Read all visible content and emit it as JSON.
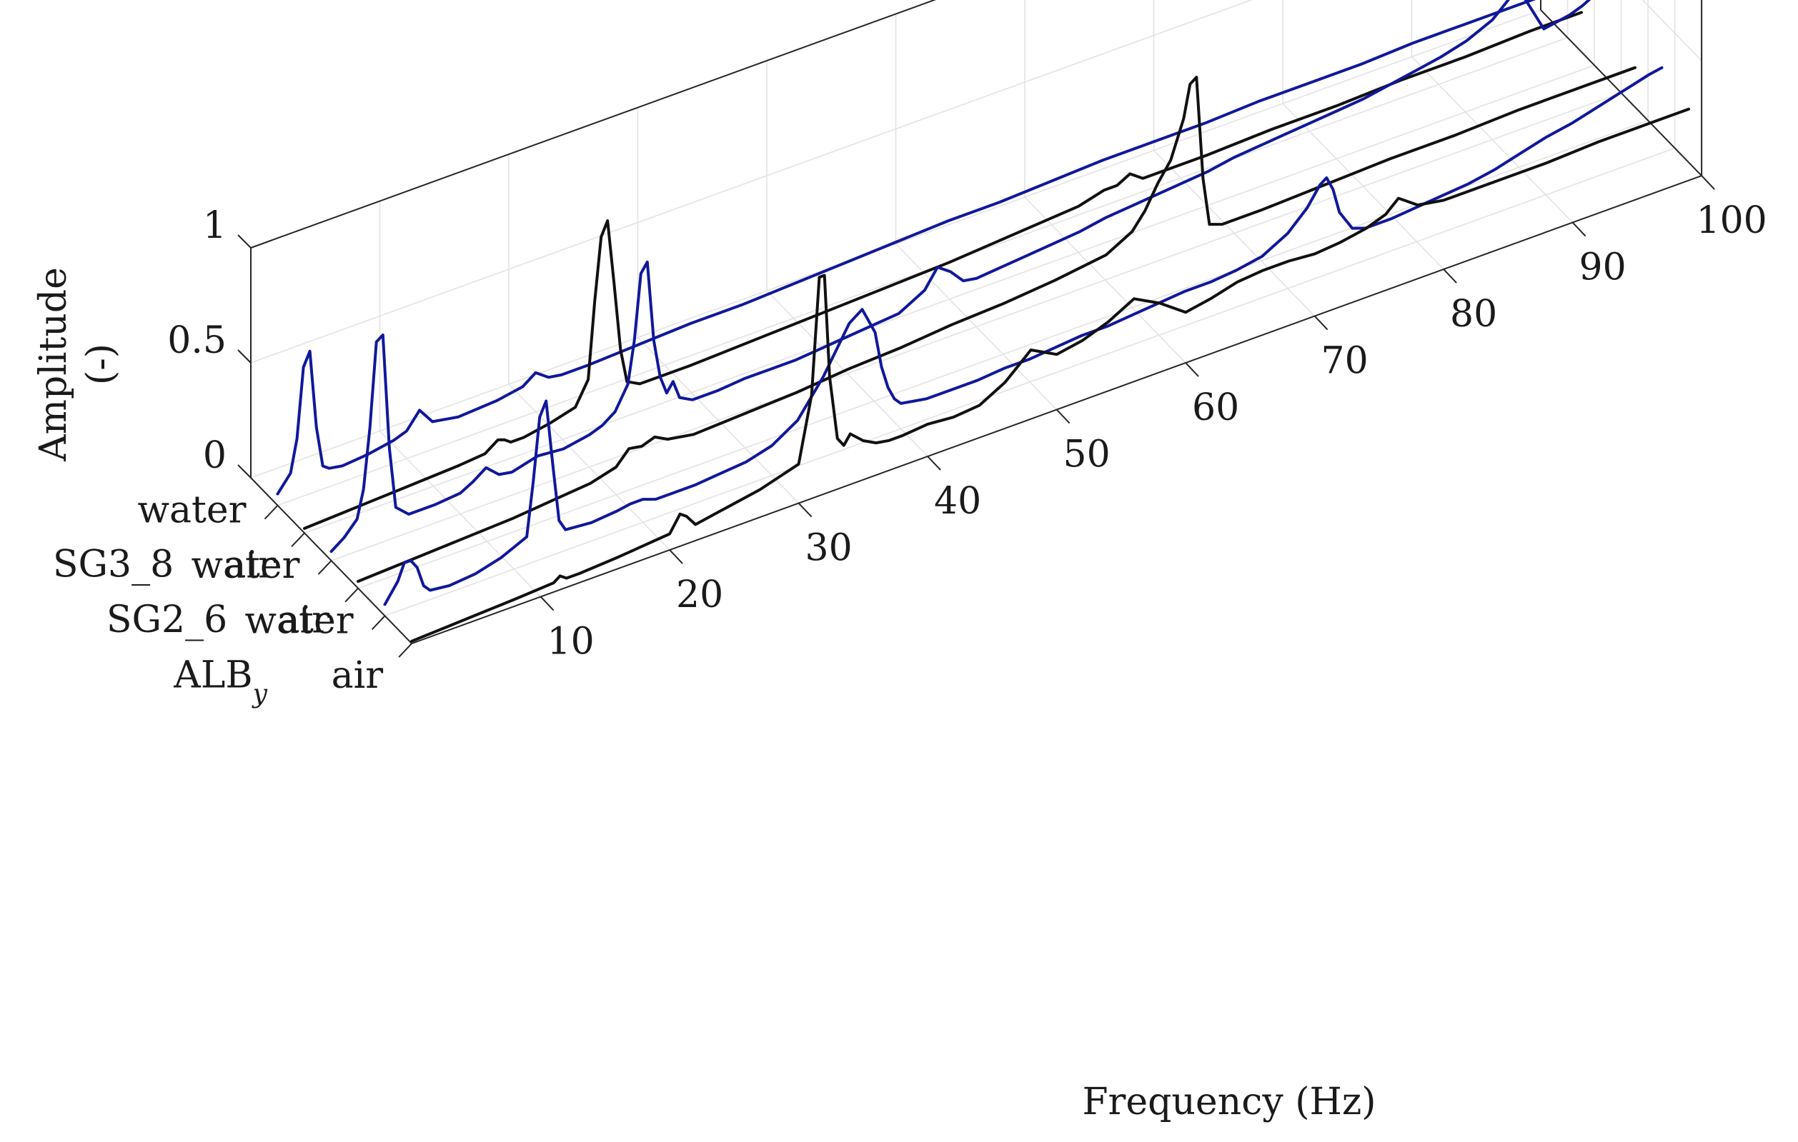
{
  "chart_data": {
    "type": "line",
    "view": "3d-waterfall",
    "title": "",
    "xlabel": "Frequency (Hz)",
    "ylabel": "",
    "zlabel_lines": [
      "Amplitude",
      "(-)"
    ],
    "xlim": [
      0,
      100
    ],
    "zlim": [
      0,
      1
    ],
    "x_ticks": [
      "10",
      "20",
      "30",
      "40",
      "50",
      "60",
      "70",
      "80",
      "90",
      "100"
    ],
    "z_ticks": [
      "0",
      "0.5",
      "1"
    ],
    "grid": true,
    "groups": [
      {
        "label": "ALB",
        "subscript": "y",
        "rows": [
          "water",
          "air"
        ]
      },
      {
        "label": "SG2_6",
        "rows": [
          "water",
          "air"
        ]
      },
      {
        "label": "SG3_8",
        "rows": [
          "water",
          "air"
        ]
      }
    ],
    "colors": {
      "water": "#10189a",
      "air": "#111111",
      "frame": "#262626",
      "grid": "#e3e3e3"
    },
    "series": [
      {
        "name": "ALB_y water",
        "group": "ALB",
        "medium": "water",
        "x": [
          0,
          1,
          1.5,
          2,
          2.5,
          3,
          3.5,
          5,
          7,
          9,
          11,
          11.5,
          12,
          12.5,
          13,
          13.5,
          14,
          16,
          18,
          19,
          20,
          21,
          22,
          24,
          26,
          28,
          30,
          32,
          34,
          36,
          37,
          38,
          38.5,
          39,
          39.5,
          40,
          41,
          42,
          44,
          46,
          48,
          50,
          52,
          54,
          56,
          58,
          60,
          62,
          64,
          66,
          68,
          70,
          71.5,
          72.5,
          73,
          73.5,
          74,
          75,
          76,
          78,
          80,
          82,
          84,
          86,
          88,
          90,
          92,
          94,
          96,
          98,
          99
        ],
        "values": [
          0.05,
          0.13,
          0.2,
          0.2,
          0.16,
          0.07,
          0.04,
          0.03,
          0.04,
          0.07,
          0.12,
          0.35,
          0.62,
          0.68,
          0.4,
          0.14,
          0.09,
          0.08,
          0.09,
          0.1,
          0.1,
          0.08,
          0.08,
          0.08,
          0.09,
          0.1,
          0.13,
          0.2,
          0.35,
          0.54,
          0.58,
          0.46,
          0.3,
          0.2,
          0.14,
          0.11,
          0.1,
          0.09,
          0.09,
          0.09,
          0.1,
          0.1,
          0.11,
          0.12,
          0.12,
          0.13,
          0.14,
          0.15,
          0.15,
          0.16,
          0.18,
          0.24,
          0.32,
          0.4,
          0.42,
          0.36,
          0.25,
          0.16,
          0.14,
          0.14,
          0.15,
          0.16,
          0.17,
          0.19,
          0.22,
          0.25,
          0.27,
          0.3,
          0.33,
          0.36,
          0.37
        ]
      },
      {
        "name": "ALB_y air",
        "group": "ALB",
        "medium": "air",
        "x": [
          0,
          4,
          8,
          11,
          11.5,
          12,
          13,
          16,
          20,
          20.8,
          21.3,
          22,
          24,
          27,
          30,
          31,
          31.6,
          32,
          32.4,
          33,
          33.5,
          34,
          35,
          36,
          37,
          38,
          40,
          42,
          44,
          45,
          46,
          47,
          48,
          49,
          50,
          52,
          54,
          56,
          58,
          60,
          62,
          64,
          66,
          68,
          70,
          72,
          74,
          75.5,
          76.5,
          77,
          78,
          80,
          84,
          88,
          92,
          96,
          99
        ],
        "values": [
          0.01,
          0.02,
          0.03,
          0.04,
          0.06,
          0.04,
          0.04,
          0.05,
          0.07,
          0.14,
          0.12,
          0.07,
          0.09,
          0.12,
          0.17,
          0.45,
          0.95,
          0.95,
          0.5,
          0.22,
          0.18,
          0.22,
          0.17,
          0.14,
          0.13,
          0.13,
          0.14,
          0.13,
          0.14,
          0.17,
          0.2,
          0.25,
          0.3,
          0.27,
          0.24,
          0.26,
          0.3,
          0.36,
          0.3,
          0.22,
          0.24,
          0.27,
          0.28,
          0.28,
          0.27,
          0.28,
          0.3,
          0.33,
          0.38,
          0.36,
          0.32,
          0.3,
          0.3,
          0.3,
          0.31,
          0.31,
          0.31
        ]
      },
      {
        "name": "SG2_6 water",
        "group": "SG2_6",
        "medium": "water",
        "x": [
          0,
          1,
          2,
          2.5,
          3,
          3.5,
          4,
          4.5,
          5,
          6,
          8,
          10,
          11,
          12,
          13,
          14,
          16,
          18,
          20,
          21,
          22,
          23,
          23.5,
          24,
          24.5,
          25,
          25.5,
          26,
          26.5,
          27,
          28,
          30,
          32,
          34,
          36,
          38,
          40,
          42,
          44,
          46,
          47,
          48,
          49,
          50,
          52,
          54,
          56,
          58,
          60,
          62,
          64,
          66,
          68,
          70,
          72,
          74,
          76,
          78,
          80,
          82,
          84,
          86,
          88,
          90,
          92,
          94,
          96,
          97,
          98
        ],
        "values": [
          0.04,
          0.08,
          0.14,
          0.26,
          0.52,
          0.88,
          0.9,
          0.4,
          0.13,
          0.08,
          0.08,
          0.09,
          0.12,
          0.16,
          0.11,
          0.1,
          0.13,
          0.12,
          0.14,
          0.16,
          0.2,
          0.3,
          0.48,
          0.76,
          0.8,
          0.45,
          0.28,
          0.2,
          0.24,
          0.16,
          0.13,
          0.13,
          0.14,
          0.14,
          0.14,
          0.15,
          0.16,
          0.17,
          0.18,
          0.24,
          0.32,
          0.28,
          0.22,
          0.21,
          0.22,
          0.23,
          0.24,
          0.25,
          0.27,
          0.28,
          0.29,
          0.3,
          0.31,
          0.33,
          0.34,
          0.35,
          0.36,
          0.37,
          0.38,
          0.4,
          0.42,
          0.44,
          0.47,
          0.52,
          0.62,
          0.4,
          0.42,
          0.44,
          0.47
        ]
      },
      {
        "name": "SG2_6 air",
        "group": "SG2_6",
        "medium": "air",
        "x": [
          0,
          4,
          8,
          12,
          14,
          18,
          20,
          21,
          22,
          23,
          24,
          26,
          30,
          34,
          38,
          42,
          46,
          50,
          54,
          58,
          60,
          61,
          62,
          63,
          64,
          64.5,
          65,
          65.5,
          66,
          67,
          68,
          70,
          75,
          80,
          85,
          90,
          95,
          99
        ],
        "values": [
          0.03,
          0.04,
          0.05,
          0.06,
          0.07,
          0.09,
          0.12,
          0.18,
          0.17,
          0.19,
          0.16,
          0.14,
          0.15,
          0.16,
          0.18,
          0.19,
          0.21,
          0.22,
          0.24,
          0.27,
          0.33,
          0.4,
          0.5,
          0.58,
          0.74,
          0.88,
          0.9,
          0.45,
          0.24,
          0.22,
          0.22,
          0.22,
          0.23,
          0.24,
          0.24,
          0.25,
          0.25,
          0.25
        ]
      },
      {
        "name": "SG3_8 water",
        "group": "SG3_8",
        "medium": "water",
        "x": [
          0,
          1,
          1.5,
          2,
          2.5,
          3,
          3.5,
          4,
          5,
          7,
          9,
          10,
          11,
          12,
          14,
          17,
          19,
          20,
          21,
          22,
          24,
          28,
          32,
          36,
          40,
          44,
          48,
          52,
          56,
          60,
          64,
          68,
          72,
          76,
          80,
          84,
          88,
          92,
          96,
          99
        ],
        "values": [
          0.05,
          0.12,
          0.26,
          0.56,
          0.62,
          0.28,
          0.1,
          0.08,
          0.07,
          0.08,
          0.1,
          0.12,
          0.19,
          0.12,
          0.1,
          0.11,
          0.13,
          0.17,
          0.13,
          0.12,
          0.12,
          0.13,
          0.14,
          0.14,
          0.15,
          0.16,
          0.17,
          0.18,
          0.18,
          0.19,
          0.2,
          0.2,
          0.2,
          0.21,
          0.21,
          0.21,
          0.22,
          0.22,
          0.22,
          0.22
        ]
      },
      {
        "name": "SG3_8 air",
        "group": "SG3_8",
        "medium": "air",
        "x": [
          0,
          4,
          8,
          12,
          14,
          15,
          15.5,
          16,
          17,
          19,
          21,
          22,
          22.5,
          23,
          23.5,
          24,
          24.5,
          25,
          26,
          27,
          30,
          35,
          40,
          45,
          50,
          55,
          60,
          62,
          63,
          64,
          65,
          70,
          75,
          80,
          85,
          90,
          95,
          99
        ],
        "values": [
          0.02,
          0.03,
          0.04,
          0.05,
          0.06,
          0.1,
          0.09,
          0.07,
          0.07,
          0.09,
          0.12,
          0.22,
          0.55,
          0.82,
          0.88,
          0.6,
          0.3,
          0.15,
          0.12,
          0.12,
          0.12,
          0.13,
          0.14,
          0.15,
          0.16,
          0.18,
          0.2,
          0.23,
          0.23,
          0.26,
          0.22,
          0.22,
          0.23,
          0.23,
          0.24,
          0.24,
          0.25,
          0.25
        ]
      }
    ]
  }
}
